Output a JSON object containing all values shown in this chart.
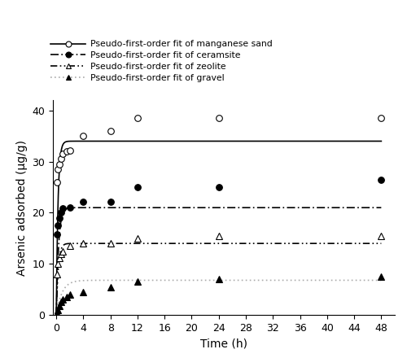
{
  "xlabel": "Time (h)",
  "ylabel": "Arsenic adsorbed (μg/g)",
  "xlim": [
    -0.5,
    50
  ],
  "ylim": [
    0,
    42
  ],
  "xticks": [
    0,
    4,
    8,
    12,
    16,
    20,
    24,
    28,
    32,
    36,
    40,
    44,
    48
  ],
  "yticks": [
    0,
    10,
    20,
    30,
    40
  ],
  "manganese_sand": {
    "t_data": [
      0.083,
      0.25,
      0.5,
      0.75,
      1,
      1.5,
      2,
      4,
      8,
      12,
      24,
      48
    ],
    "q_data": [
      26.0,
      28.5,
      29.5,
      30.5,
      31.5,
      32.0,
      32.2,
      35.0,
      36.0,
      38.5,
      38.5,
      38.5
    ],
    "qe": 34.0,
    "k1": 4.0,
    "marker": "o",
    "fillstyle": "none",
    "markersize": 5.5,
    "line_color": "black",
    "linestyle": "-",
    "linewidth": 1.2
  },
  "ceramsite": {
    "t_data": [
      0.083,
      0.25,
      0.5,
      0.75,
      1,
      2,
      4,
      8,
      12,
      24,
      48
    ],
    "q_data": [
      15.8,
      17.5,
      19.0,
      20.0,
      20.8,
      21.0,
      22.2,
      22.2,
      25.0,
      25.0,
      26.5
    ],
    "qe": 21.0,
    "k1": 3.0,
    "marker": "o",
    "fillstyle": "full",
    "markersize": 5.5,
    "line_color": "black",
    "linestyle": "dashdotdot",
    "linewidth": 1.2
  },
  "zeolite": {
    "t_data": [
      0.083,
      0.25,
      0.5,
      0.75,
      1,
      2,
      4,
      8,
      12,
      24,
      48
    ],
    "q_data": [
      8.0,
      10.0,
      11.2,
      12.0,
      12.5,
      13.5,
      14.0,
      14.0,
      15.0,
      15.5,
      15.5
    ],
    "qe": 14.0,
    "k1": 3.5,
    "marker": "^",
    "fillstyle": "none",
    "markersize": 5.5,
    "line_color": "black",
    "linestyle": "dashdotdot2",
    "linewidth": 1.2
  },
  "gravel": {
    "t_data": [
      0.083,
      0.25,
      0.5,
      0.75,
      1,
      1.5,
      2,
      4,
      8,
      12,
      24,
      48
    ],
    "q_data": [
      0.3,
      1.0,
      1.8,
      2.5,
      3.0,
      3.5,
      4.0,
      4.5,
      5.5,
      6.5,
      7.0,
      7.5
    ],
    "qe": 6.8,
    "k1": 1.2,
    "marker": "^",
    "fillstyle": "full",
    "markersize": 5.5,
    "line_color": "#999999",
    "linestyle": ":",
    "linewidth": 1.2
  },
  "legend_labels": [
    "Pseudo-first-order fit of manganese sand",
    "Pseudo-first-order fit of ceramsite",
    "Pseudo-first-order fit of zeolite",
    "Pseudo-first-order fit of gravel"
  ]
}
